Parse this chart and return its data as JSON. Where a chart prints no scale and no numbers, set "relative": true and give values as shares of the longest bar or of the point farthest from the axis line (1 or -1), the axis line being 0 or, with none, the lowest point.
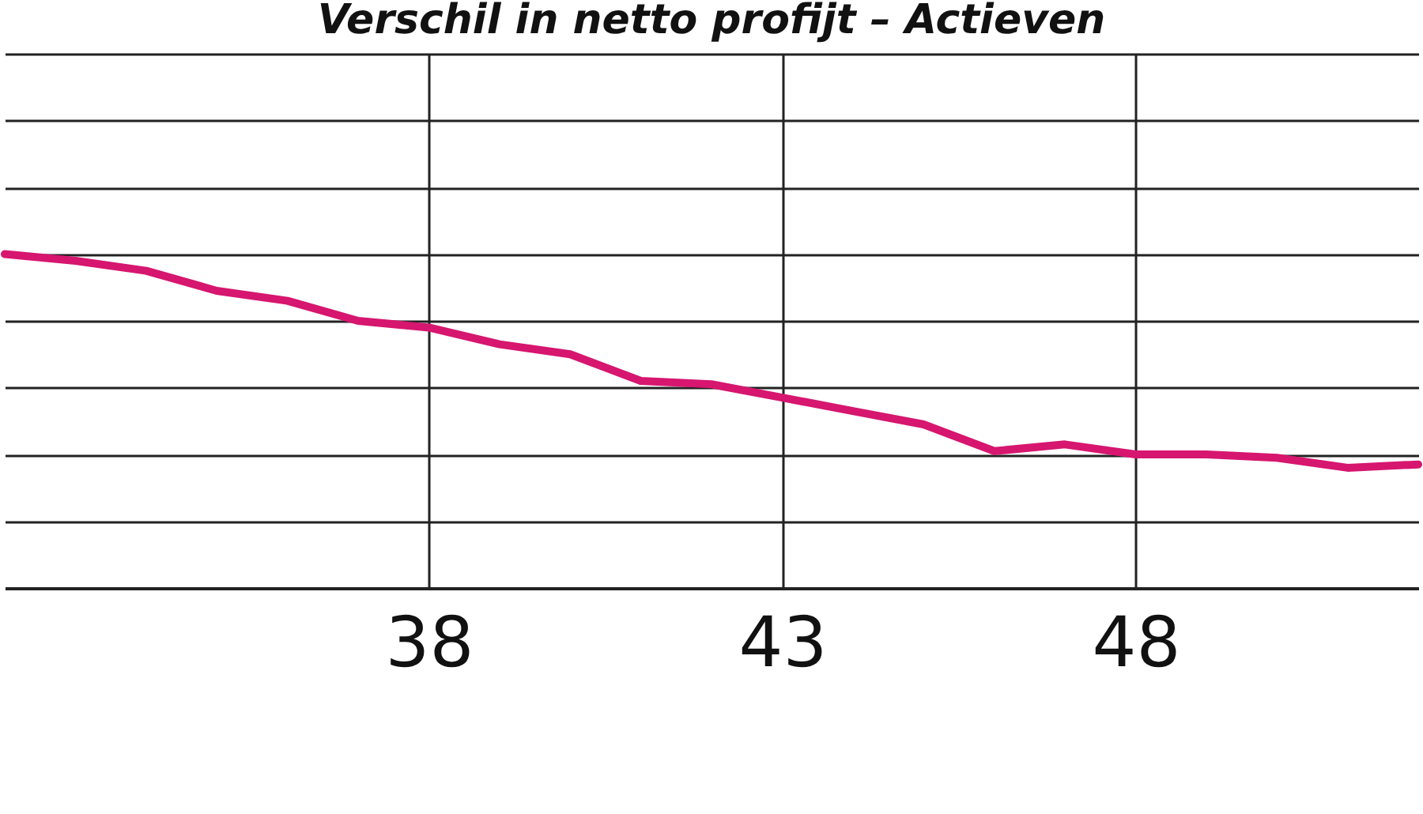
{
  "chart_data": {
    "type": "line",
    "title": "Verschil in netto profijt – Actieven",
    "relative": true,
    "x": [
      32,
      33,
      34,
      35,
      36,
      37,
      38,
      39,
      40,
      41,
      42,
      43,
      44,
      45,
      46,
      47,
      48,
      49,
      50,
      51,
      52
    ],
    "series": [
      {
        "color": "#d6166f",
        "values": [
          1,
          0.98,
          0.95,
          0.89,
          0.86,
          0.8,
          0.78,
          0.73,
          0.7,
          0.62,
          0.61,
          0.57,
          0.53,
          0.49,
          0.41,
          0.43,
          0.4,
          0.4,
          0.39,
          0.36,
          0.37
        ]
      }
    ],
    "xlim": [
      32,
      52
    ],
    "xticks": [
      38,
      43,
      48
    ],
    "grid": true,
    "line_style": "solid",
    "marker": "none"
  }
}
